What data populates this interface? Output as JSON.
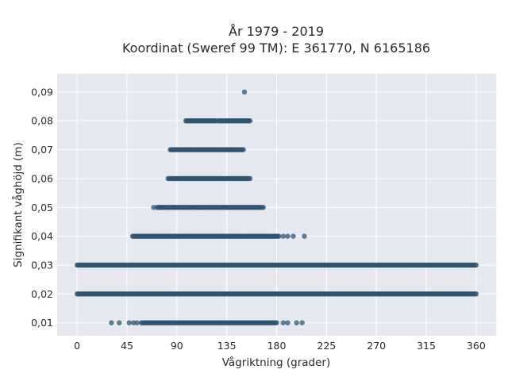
{
  "chart_data": {
    "type": "scatter",
    "title": "År 1979 - 2019",
    "subtitle": "Koordinat (Sweref 99 TM): E 361770, N 6165186",
    "xlabel": "Vågriktning (grader)",
    "ylabel": "Signifikant våghöjd (m)",
    "xlim": [
      -18,
      378
    ],
    "ylim": [
      0.0055,
      0.0963
    ],
    "grid": true,
    "legend": "none",
    "x_ticks": [
      0,
      45,
      90,
      135,
      180,
      225,
      270,
      315,
      360
    ],
    "x_tick_labels": [
      "0",
      "45",
      "90",
      "135",
      "180",
      "225",
      "270",
      "315",
      "360"
    ],
    "y_ticks": [
      0.01,
      0.02,
      0.03,
      0.04,
      0.05,
      0.06,
      0.07,
      0.08,
      0.09
    ],
    "y_tick_labels": [
      "0,01",
      "0,02",
      "0,03",
      "0,04",
      "0,05",
      "0,06",
      "0,07",
      "0,08",
      "0,09"
    ],
    "marker_color": "#2f5470",
    "background_color": "#e5e8ef",
    "grid_color": "#ffffff",
    "bands": [
      {
        "y": 0.01,
        "x_min": 58,
        "x_max": 180,
        "outliers": [
          31,
          38,
          47,
          51,
          54,
          186,
          190,
          198,
          203
        ]
      },
      {
        "y": 0.02,
        "x_min": 0,
        "x_max": 360,
        "outliers": []
      },
      {
        "y": 0.03,
        "x_min": 0,
        "x_max": 360,
        "outliers": []
      },
      {
        "y": 0.04,
        "x_min": 50,
        "x_max": 182,
        "outliers": [
          186,
          190,
          195,
          205
        ]
      },
      {
        "y": 0.05,
        "x_min": 72,
        "x_max": 168,
        "outliers": [
          69,
          75
        ]
      },
      {
        "y": 0.06,
        "x_min": 82,
        "x_max": 156,
        "outliers": []
      },
      {
        "y": 0.07,
        "x_min": 84,
        "x_max": 150,
        "outliers": []
      },
      {
        "y": 0.08,
        "x_min": 98,
        "x_max": 125,
        "extra_segments": [
          [
            127,
            156
          ]
        ],
        "outliers": []
      },
      {
        "y": 0.09,
        "x_min": null,
        "x_max": null,
        "outliers": [
          151
        ]
      }
    ]
  }
}
